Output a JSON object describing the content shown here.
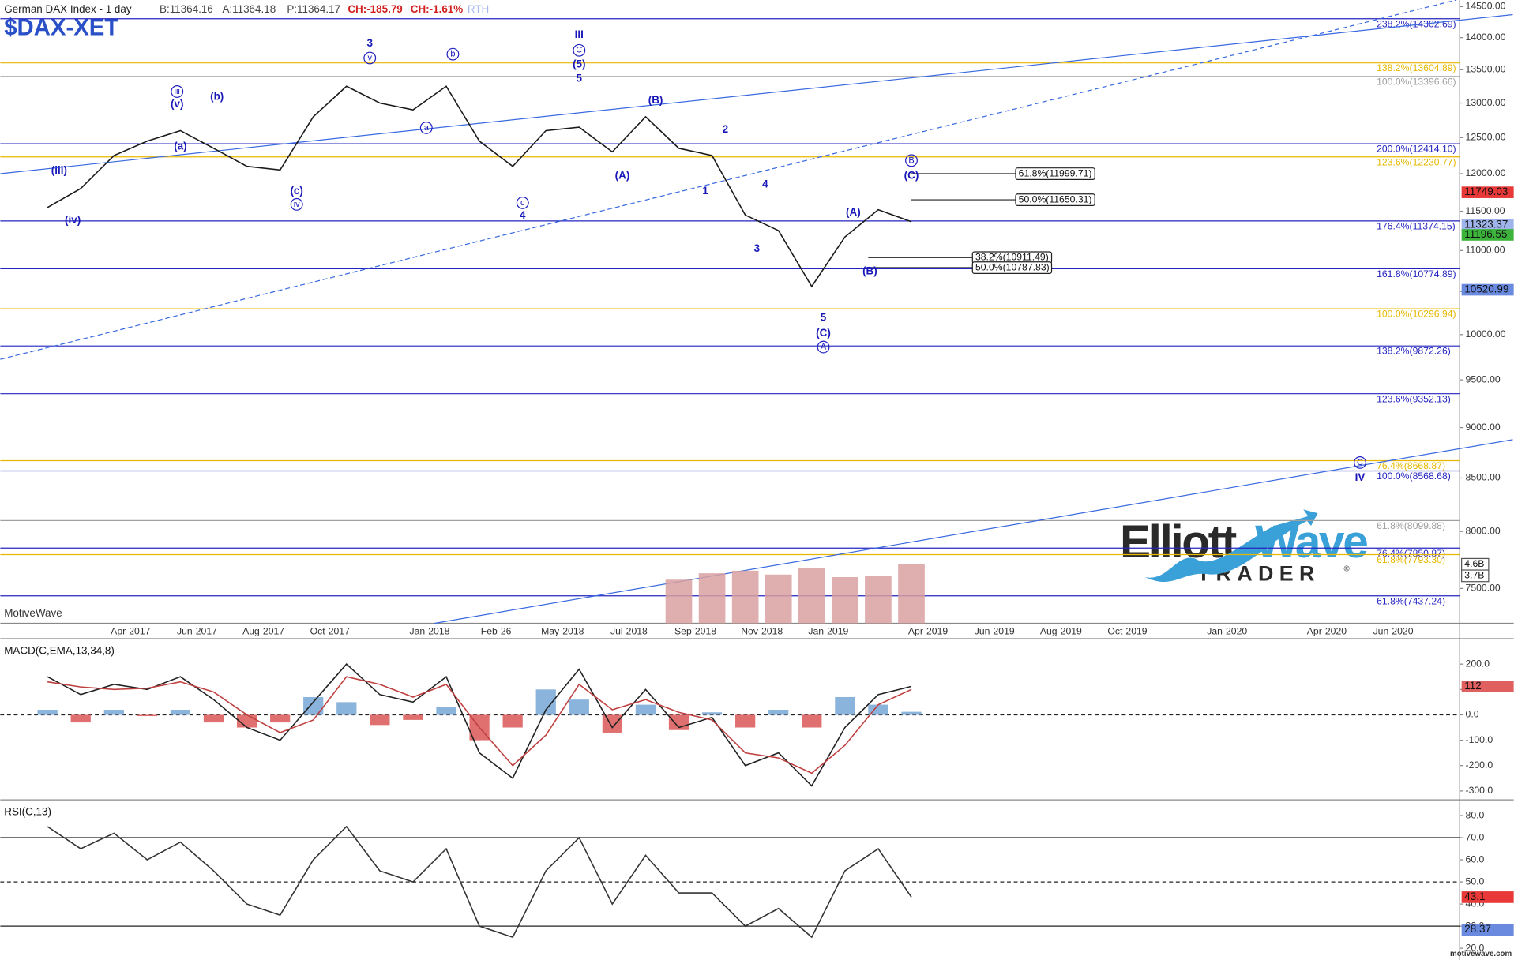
{
  "header": {
    "title": "German DAX Index - 1 day",
    "bid": "B:11364.16",
    "ask": "A:11364.18",
    "price": "P:11364.17",
    "change": "CH:-185.79",
    "change_pct": "CH:-1.61%",
    "session": "RTH",
    "symbol": "$DAX-XET",
    "brand": "MotiveWave",
    "footer": "motivewave.com"
  },
  "logo": {
    "word1": "Elliott",
    "word2": "Wave",
    "word3": "TRADER",
    "mark": "®"
  },
  "chart_data": [
    {
      "type": "line",
      "log_scale": true,
      "categories": [
        null,
        null,
        null,
        "Apr-2017",
        null,
        "Jun-2017",
        null,
        "Aug-2017",
        null,
        "Oct-2017",
        null,
        null,
        "Jan-2018",
        null,
        "Feb-26",
        null,
        "May-2018",
        null,
        "Jul-2018",
        null,
        "Sep-2018",
        null,
        "Nov-2018",
        null,
        "Jan-2019",
        null,
        null,
        "Apr-2019",
        null,
        "Jun-2019",
        null,
        "Aug-2019",
        null,
        "Oct-2019",
        null,
        null,
        "Jan-2020",
        null,
        null,
        "Apr-2020",
        null,
        "Jun-2020",
        null
      ],
      "ylim": [
        7210,
        14610
      ],
      "yticks": [
        {
          "value": 7500,
          "label": "7500.00"
        },
        {
          "value": 8000,
          "label": "8000.00"
        },
        {
          "value": 8500,
          "label": "8500.00"
        },
        {
          "value": 9000,
          "label": "9000.00"
        },
        {
          "value": 9500,
          "label": "9500.00"
        },
        {
          "value": 10000,
          "label": "10000.00"
        },
        {
          "value": 10500,
          "label": "10500.00"
        },
        {
          "value": 11000,
          "label": "11000.00"
        },
        {
          "value": 11500,
          "label": "11500.00"
        },
        {
          "value": 12000,
          "label": "12000.00"
        },
        {
          "value": 12500,
          "label": "12500.00"
        },
        {
          "value": 13000,
          "label": "13000.00"
        },
        {
          "value": 13500,
          "label": "13500.00"
        },
        {
          "value": 14000,
          "label": "14000.00"
        },
        {
          "value": 14500,
          "label": "14500.00"
        }
      ],
      "series": [
        {
          "color": "#1a1a1a",
          "values": [
            11550,
            11800,
            12250,
            12450,
            12600,
            12350,
            12100,
            12050,
            12800,
            13250,
            13000,
            12900,
            13250,
            12450,
            12100,
            12600,
            12650,
            12300,
            12800,
            12350,
            12250,
            11450,
            11250,
            10560,
            11170,
            11520,
            11364,
            null,
            null,
            null,
            null,
            null,
            null,
            null,
            null,
            null,
            null,
            null,
            null,
            null,
            null,
            null,
            null
          ]
        }
      ],
      "volume": {
        "color": "#d9a0a0",
        "y2lim": [
          0,
          48.6
        ],
        "y2ticks": [
          {
            "value": 4.6,
            "label": "4.6B"
          },
          {
            "value": 3.7,
            "label": "3.7B"
          }
        ],
        "values": [
          null,
          null,
          null,
          null,
          null,
          null,
          null,
          null,
          null,
          null,
          null,
          null,
          null,
          null,
          null,
          null,
          null,
          null,
          null,
          3.4,
          3.9,
          4.1,
          3.8,
          4.3,
          3.6,
          3.7,
          4.6,
          null,
          null,
          null,
          null,
          null,
          null,
          null,
          null,
          null,
          null,
          null,
          null,
          null,
          null,
          null,
          null
        ]
      },
      "levels": [
        {
          "label": "238.2%(14302.69)",
          "value": 14302.69,
          "color": "#2424c0"
        },
        {
          "label": "138.2%(13604.89)",
          "value": 13604.89,
          "color": "#e8b800"
        },
        {
          "label": "100.0%(13396.66)",
          "value": 13396.66,
          "color": "#a0a0a0"
        },
        {
          "label": "200.0%(12414.10)",
          "value": 12414.1,
          "color": "#2424c0"
        },
        {
          "label": "123.6%(12230.77)",
          "value": 12230.77,
          "color": "#e8b800"
        },
        {
          "label": "176.4%(11374.15)",
          "value": 11374.15,
          "color": "#2424c0"
        },
        {
          "label": "161.8%(10774.89)",
          "value": 10774.89,
          "color": "#2424c0"
        },
        {
          "label": "100.0%(10296.94)",
          "value": 10296.94,
          "color": "#e8b800"
        },
        {
          "label": "138.2%(9872.26)",
          "value": 9872.26,
          "color": "#2424c0"
        },
        {
          "label": "123.6%(9352.13)",
          "value": 9352.13,
          "color": "#2424c0"
        },
        {
          "label": "76.4%(8668.87)",
          "value": 8668.87,
          "color": "#e8b800"
        },
        {
          "label": "100.0%(8568.68)",
          "value": 8568.68,
          "color": "#2424c0"
        },
        {
          "label": "61.8%(8099.88)",
          "value": 8099.88,
          "color": "#a0a0a0"
        },
        {
          "label": "76.4%(7850.87)",
          "value": 7850.87,
          "color": "#2424c0"
        },
        {
          "label": "61.8%(7793.30)",
          "value": 7793.3,
          "color": "#e8b800"
        },
        {
          "label": "61.8%(7437.24)",
          "value": 7437.24,
          "color": "#2424c0"
        }
      ],
      "boxed_levels": [
        {
          "label": "61.8%(11999.71)",
          "value": 11999.71,
          "from": 26.5
        },
        {
          "label": "50.0%(11650.31)",
          "value": 11650.31,
          "from": 26.5
        },
        {
          "label": "38.2%(10911.49)",
          "value": 10911.49,
          "from": 25.2
        },
        {
          "label": "50.0%(10787.83)",
          "value": 10787.83,
          "from": 25.2
        }
      ],
      "badges": [
        {
          "value": 11749.03,
          "color": "#e83838"
        },
        {
          "value": 11323.37,
          "color": "#9fb4ea"
        },
        {
          "value": 11196.55,
          "color": "#3cb43c"
        },
        {
          "value": 10520.99,
          "color": "#6a8ae0"
        }
      ],
      "waves": [
        {
          "text": "3",
          "x": 10.2,
          "y": 13900
        },
        {
          "text": "v",
          "x": 10.2,
          "y": 13680,
          "circled": true
        },
        {
          "text": "b",
          "x": 12.7,
          "y": 13740,
          "circled": true
        },
        {
          "text": "iii",
          "x": 4.4,
          "y": 13170,
          "circled": true
        },
        {
          "text": "(v)",
          "x": 4.4,
          "y": 12980
        },
        {
          "text": "(b)",
          "x": 5.6,
          "y": 13090
        },
        {
          "text": "(a)",
          "x": 4.5,
          "y": 12370
        },
        {
          "text": "a",
          "x": 11.9,
          "y": 12640,
          "circled": true
        },
        {
          "text": "(iii)",
          "x": 0.85,
          "y": 12040
        },
        {
          "text": "(iv)",
          "x": 1.26,
          "y": 11380
        },
        {
          "text": "(c)",
          "x": 8.0,
          "y": 11760
        },
        {
          "text": "iv",
          "x": 8.0,
          "y": 11590,
          "circled": true
        },
        {
          "text": "c",
          "x": 14.8,
          "y": 11610,
          "circled": true
        },
        {
          "text": "4",
          "x": 14.8,
          "y": 11440
        },
        {
          "text": "III",
          "x": 16.5,
          "y": 14040
        },
        {
          "text": "C",
          "x": 16.5,
          "y": 13800,
          "circled": true
        },
        {
          "text": "(5)",
          "x": 16.5,
          "y": 13580
        },
        {
          "text": "5",
          "x": 16.5,
          "y": 13360
        },
        {
          "text": "(B)",
          "x": 18.8,
          "y": 13035
        },
        {
          "text": "(A)",
          "x": 17.8,
          "y": 11970
        },
        {
          "text": "2",
          "x": 20.9,
          "y": 12610
        },
        {
          "text": "1",
          "x": 20.3,
          "y": 11760
        },
        {
          "text": "4",
          "x": 22.1,
          "y": 11850
        },
        {
          "text": "3",
          "x": 21.85,
          "y": 11020
        },
        {
          "text": "5",
          "x": 23.85,
          "y": 10190
        },
        {
          "text": "(C)",
          "x": 23.85,
          "y": 10010
        },
        {
          "text": "A",
          "x": 23.85,
          "y": 9860,
          "circled": true
        },
        {
          "text": "(A)",
          "x": 24.75,
          "y": 11480
        },
        {
          "text": "(B)",
          "x": 25.25,
          "y": 10740
        },
        {
          "text": "B",
          "x": 26.5,
          "y": 12180,
          "circled": true
        },
        {
          "text": "(C)",
          "x": 26.5,
          "y": 11970
        },
        {
          "text": "C",
          "x": 40.0,
          "y": 8650,
          "circled": true
        },
        {
          "text": "IV",
          "x": 40.0,
          "y": 8500
        }
      ],
      "trendlines": [
        {
          "from": [
            -0.92,
            12000
          ],
          "to": [
            44.6,
            14370
          ],
          "color": "#3a6ae0",
          "dashed": false
        },
        {
          "from": [
            -0.92,
            9724
          ],
          "to": [
            42.9,
            14610
          ],
          "color": "#3a6ae0",
          "dashed": true
        },
        {
          "from": [
            12.15,
            7210
          ],
          "to": [
            44.6,
            8878
          ],
          "color": "#3a6ae0",
          "dashed": false
        }
      ]
    },
    {
      "type": "macd",
      "title": "MACD(C,EMA,13,34,8)",
      "ylim": [
        -335,
        300
      ],
      "yticks": [
        {
          "value": 200,
          "label": "200.0"
        },
        {
          "value": 100,
          "label": "100.0"
        },
        {
          "value": 0,
          "label": "0.0"
        },
        {
          "value": -100,
          "label": "-100.0"
        },
        {
          "value": -200,
          "label": "-200.0"
        },
        {
          "value": -300,
          "label": "-300.0"
        }
      ],
      "ref_lines": [
        {
          "value": 0,
          "dashed": true
        }
      ],
      "series": [
        {
          "color": "#222222",
          "values": [
            150,
            80,
            120,
            100,
            150,
            60,
            -50,
            -100,
            50,
            200,
            80,
            50,
            150,
            -150,
            -250,
            20,
            180,
            -50,
            100,
            -50,
            -10,
            -200,
            -150,
            -280,
            -50,
            80,
            112,
            null,
            null,
            null,
            null,
            null,
            null,
            null,
            null,
            null,
            null,
            null,
            null,
            null,
            null,
            null,
            null
          ]
        },
        {
          "color": "#c04040",
          "values": [
            130,
            110,
            100,
            105,
            130,
            90,
            0,
            -70,
            -20,
            150,
            120,
            70,
            120,
            -50,
            -200,
            -80,
            120,
            20,
            60,
            10,
            -20,
            -150,
            -170,
            -230,
            -120,
            40,
            100,
            null,
            null,
            null,
            null,
            null,
            null,
            null,
            null,
            null,
            null,
            null,
            null,
            null,
            null,
            null,
            null
          ]
        }
      ],
      "histogram": {
        "up_color": "#8ab4dc",
        "down_color": "#e07070",
        "values": [
          20,
          -30,
          20,
          -5,
          20,
          -30,
          -50,
          -30,
          70,
          50,
          -40,
          -20,
          30,
          -100,
          -50,
          100,
          60,
          -70,
          40,
          -60,
          10,
          -50,
          20,
          -50,
          70,
          40,
          12,
          null,
          null,
          null,
          null,
          null,
          null,
          null,
          null,
          null,
          null,
          null,
          null,
          null,
          null,
          null,
          null
        ]
      },
      "badges": [
        {
          "value": 112,
          "color": "#e06060"
        }
      ]
    },
    {
      "type": "rsi",
      "title": "RSI(C,13)",
      "ylim": [
        14.7,
        87.1
      ],
      "yticks": [
        {
          "value": 80,
          "label": "80.0"
        },
        {
          "value": 70,
          "label": "70.0"
        },
        {
          "value": 60,
          "label": "60.0"
        },
        {
          "value": 50,
          "label": "50.0"
        },
        {
          "value": 40,
          "label": "40.0"
        },
        {
          "value": 30,
          "label": "30.0"
        },
        {
          "value": 20,
          "label": "20.0"
        }
      ],
      "ref_lines": [
        {
          "value": 70,
          "dashed": false
        },
        {
          "value": 50,
          "dashed": true
        },
        {
          "value": 30,
          "dashed": false
        }
      ],
      "series": [
        {
          "color": "#333333",
          "values": [
            75,
            65,
            72,
            60,
            68,
            55,
            40,
            35,
            60,
            75,
            55,
            50,
            65,
            30,
            25,
            55,
            70,
            40,
            62,
            45,
            45,
            30,
            38,
            25,
            55,
            65,
            43.1,
            null,
            null,
            null,
            null,
            null,
            null,
            null,
            null,
            null,
            null,
            null,
            null,
            null,
            null,
            null,
            null
          ]
        }
      ],
      "badges": [
        {
          "value": 43.1,
          "color": "#e83838"
        },
        {
          "value": 28.37,
          "color": "#6a8ae0"
        }
      ]
    }
  ]
}
